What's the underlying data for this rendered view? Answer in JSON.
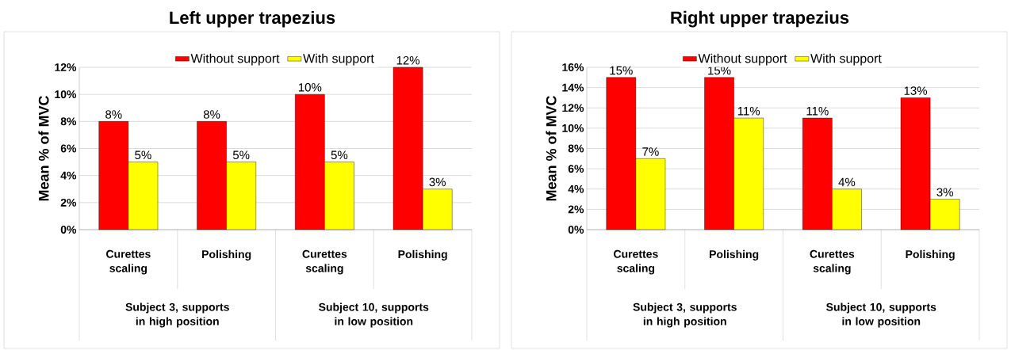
{
  "chart_data": [
    {
      "type": "bar",
      "title": "Left upper trapezius",
      "ylabel": "Mean % of MVC",
      "categories": [
        "Curettes scaling",
        "Polishing",
        "Curettes scaling",
        "Polishing"
      ],
      "series": [
        {
          "name": "Without support",
          "color": "#ff0000",
          "values": [
            8,
            8,
            10,
            12
          ],
          "value_labels": [
            "8%",
            "8%",
            "10%",
            "12%"
          ]
        },
        {
          "name": "With support",
          "color": "#ffff00",
          "values": [
            5,
            5,
            5,
            3
          ],
          "value_labels": [
            "5%",
            "5%",
            "5%",
            "3%"
          ]
        }
      ],
      "ylim": [
        0,
        12
      ],
      "yticks": [
        {
          "value": 0,
          "label": "0%"
        },
        {
          "value": 2,
          "label": "2%"
        },
        {
          "value": 4,
          "label": "4%"
        },
        {
          "value": 6,
          "label": "6%"
        },
        {
          "value": 8,
          "label": "8%"
        },
        {
          "value": 10,
          "label": "10%"
        },
        {
          "value": 12,
          "label": "12%"
        }
      ],
      "grid": "y",
      "legend": "top",
      "annotations": [
        "Subject 3, supports in high position",
        "Subject 10, supports in low position"
      ]
    },
    {
      "type": "bar",
      "title": "Right upper trapezius",
      "ylabel": "Mean % of MVC",
      "categories": [
        "Curettes scaling",
        "Polishing",
        "Curettes scaling",
        "Polishing"
      ],
      "series": [
        {
          "name": "Without support",
          "color": "#ff0000",
          "values": [
            15,
            15,
            11,
            13
          ],
          "value_labels": [
            "15%",
            "15%",
            "11%",
            "13%"
          ]
        },
        {
          "name": "With support",
          "color": "#ffff00",
          "values": [
            7,
            11,
            4,
            3
          ],
          "value_labels": [
            "7%",
            "11%",
            "4%",
            "3%"
          ]
        }
      ],
      "ylim": [
        0,
        16
      ],
      "yticks": [
        {
          "value": 0,
          "label": "0%"
        },
        {
          "value": 2,
          "label": "2%"
        },
        {
          "value": 4,
          "label": "4%"
        },
        {
          "value": 6,
          "label": "6%"
        },
        {
          "value": 8,
          "label": "8%"
        },
        {
          "value": 10,
          "label": "10%"
        },
        {
          "value": 12,
          "label": "12%"
        },
        {
          "value": 14,
          "label": "14%"
        },
        {
          "value": 16,
          "label": "16%"
        }
      ],
      "grid": "y",
      "legend": "top",
      "annotations": [
        "Subject 3, supports in high position",
        "Subject 10, supports in low position"
      ]
    }
  ]
}
